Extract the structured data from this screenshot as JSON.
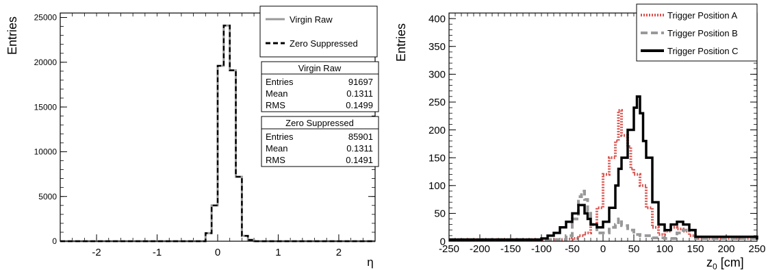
{
  "chart_data": [
    {
      "type": "histogram",
      "xlabel": "η",
      "ylabel": "Entries",
      "xlim": [
        -2.6,
        2.6
      ],
      "ylim": [
        0,
        25500
      ],
      "x_ticks": [
        -2,
        -1,
        0,
        1,
        2
      ],
      "y_ticks": [
        0,
        5000,
        10000,
        15000,
        20000,
        25000
      ],
      "x_tick_labels": [
        "-2",
        "-1",
        "0",
        "1",
        "2"
      ],
      "y_tick_labels": [
        "0",
        "5000",
        "10000",
        "15000",
        "20000",
        "25000"
      ],
      "bins": [
        [
          -0.2,
          -0.1
        ],
        [
          -0.1,
          0.0
        ],
        [
          0.0,
          0.1
        ],
        [
          0.1,
          0.2
        ],
        [
          0.2,
          0.3
        ],
        [
          0.3,
          0.4
        ],
        [
          0.4,
          0.5
        ],
        [
          0.5,
          0.6
        ]
      ],
      "series": [
        {
          "name": "Virgin Raw",
          "color": "#999999",
          "values": [
            900,
            4000,
            19600,
            24100,
            19100,
            7200,
            600,
            150
          ]
        },
        {
          "name": "Zero Suppressed",
          "color": "#000000",
          "values": [
            900,
            4000,
            19600,
            24100,
            19100,
            7200,
            600,
            150
          ]
        }
      ],
      "legend": {
        "position": "top-right",
        "entries": [
          "Virgin Raw",
          "Zero Suppressed"
        ]
      },
      "stats_boxes": [
        {
          "title": "Virgin Raw",
          "rows": [
            {
              "label": "Entries",
              "value": "91697"
            },
            {
              "label": "Mean",
              "value": "0.1311"
            },
            {
              "label": "RMS",
              "value": "0.1499"
            }
          ]
        },
        {
          "title": "Zero Suppressed",
          "rows": [
            {
              "label": "Entries",
              "value": "85901"
            },
            {
              "label": "Mean",
              "value": "0.1311"
            },
            {
              "label": "RMS",
              "value": "0.1491"
            }
          ]
        }
      ]
    },
    {
      "type": "histogram",
      "xlabel": "z",
      "xlabel_subscript": "0",
      "xlabel_unit": " [cm]",
      "ylabel": "Entries",
      "xlim": [
        -250,
        250
      ],
      "ylim": [
        0,
        410
      ],
      "x_ticks": [
        -250,
        -200,
        -150,
        -100,
        -50,
        0,
        50,
        100,
        150,
        200,
        250
      ],
      "y_ticks": [
        0,
        50,
        100,
        150,
        200,
        250,
        300,
        350,
        400
      ],
      "x_tick_labels": [
        "-250",
        "-200",
        "-150",
        "-100",
        "-50",
        "0",
        "50",
        "100",
        "150",
        "200",
        "250"
      ],
      "y_tick_labels": [
        "0",
        "50",
        "100",
        "150",
        "200",
        "250",
        "300",
        "350",
        "400"
      ],
      "series": [
        {
          "name": "Trigger Position A",
          "color": "#d9534f",
          "dash": "dotted",
          "x": [
            -250,
            -100,
            -80,
            -60,
            -50,
            -40,
            -30,
            -20,
            -10,
            0,
            10,
            20,
            25,
            30,
            40,
            45,
            50,
            60,
            70,
            80,
            90,
            100,
            110,
            120,
            130,
            140,
            150,
            250
          ],
          "y": [
            3,
            3,
            3,
            4,
            5,
            10,
            15,
            30,
            60,
            120,
            150,
            180,
            235,
            190,
            170,
            130,
            120,
            100,
            60,
            25,
            12,
            18,
            25,
            22,
            18,
            10,
            5,
            3
          ]
        },
        {
          "name": "Trigger Position B",
          "color": "#999999",
          "dash": "dashed",
          "x": [
            -250,
            -100,
            -70,
            -60,
            -50,
            -40,
            -35,
            -30,
            -25,
            -20,
            -10,
            0,
            10,
            20,
            25,
            30,
            40,
            50,
            60,
            80,
            100,
            120,
            130,
            150,
            250
          ],
          "y": [
            3,
            3,
            3,
            10,
            40,
            80,
            90,
            75,
            55,
            30,
            15,
            15,
            25,
            30,
            40,
            28,
            20,
            12,
            10,
            6,
            5,
            15,
            20,
            5,
            3
          ]
        },
        {
          "name": "Trigger Position C",
          "color": "#000000",
          "dash": "solid",
          "x": [
            -250,
            -110,
            -100,
            -90,
            -80,
            -70,
            -60,
            -50,
            -40,
            -35,
            -30,
            -25,
            -20,
            -10,
            0,
            10,
            20,
            25,
            30,
            40,
            50,
            55,
            60,
            65,
            70,
            80,
            90,
            100,
            110,
            120,
            130,
            140,
            150,
            250
          ],
          "y": [
            3,
            3,
            5,
            10,
            15,
            25,
            35,
            50,
            65,
            65,
            50,
            40,
            30,
            25,
            35,
            60,
            100,
            130,
            150,
            200,
            240,
            260,
            230,
            180,
            150,
            70,
            30,
            20,
            30,
            35,
            30,
            20,
            8,
            3
          ]
        }
      ],
      "legend": {
        "position": "top-right",
        "entries": [
          "Trigger Position A",
          "Trigger Position B",
          "Trigger Position C"
        ]
      }
    }
  ]
}
